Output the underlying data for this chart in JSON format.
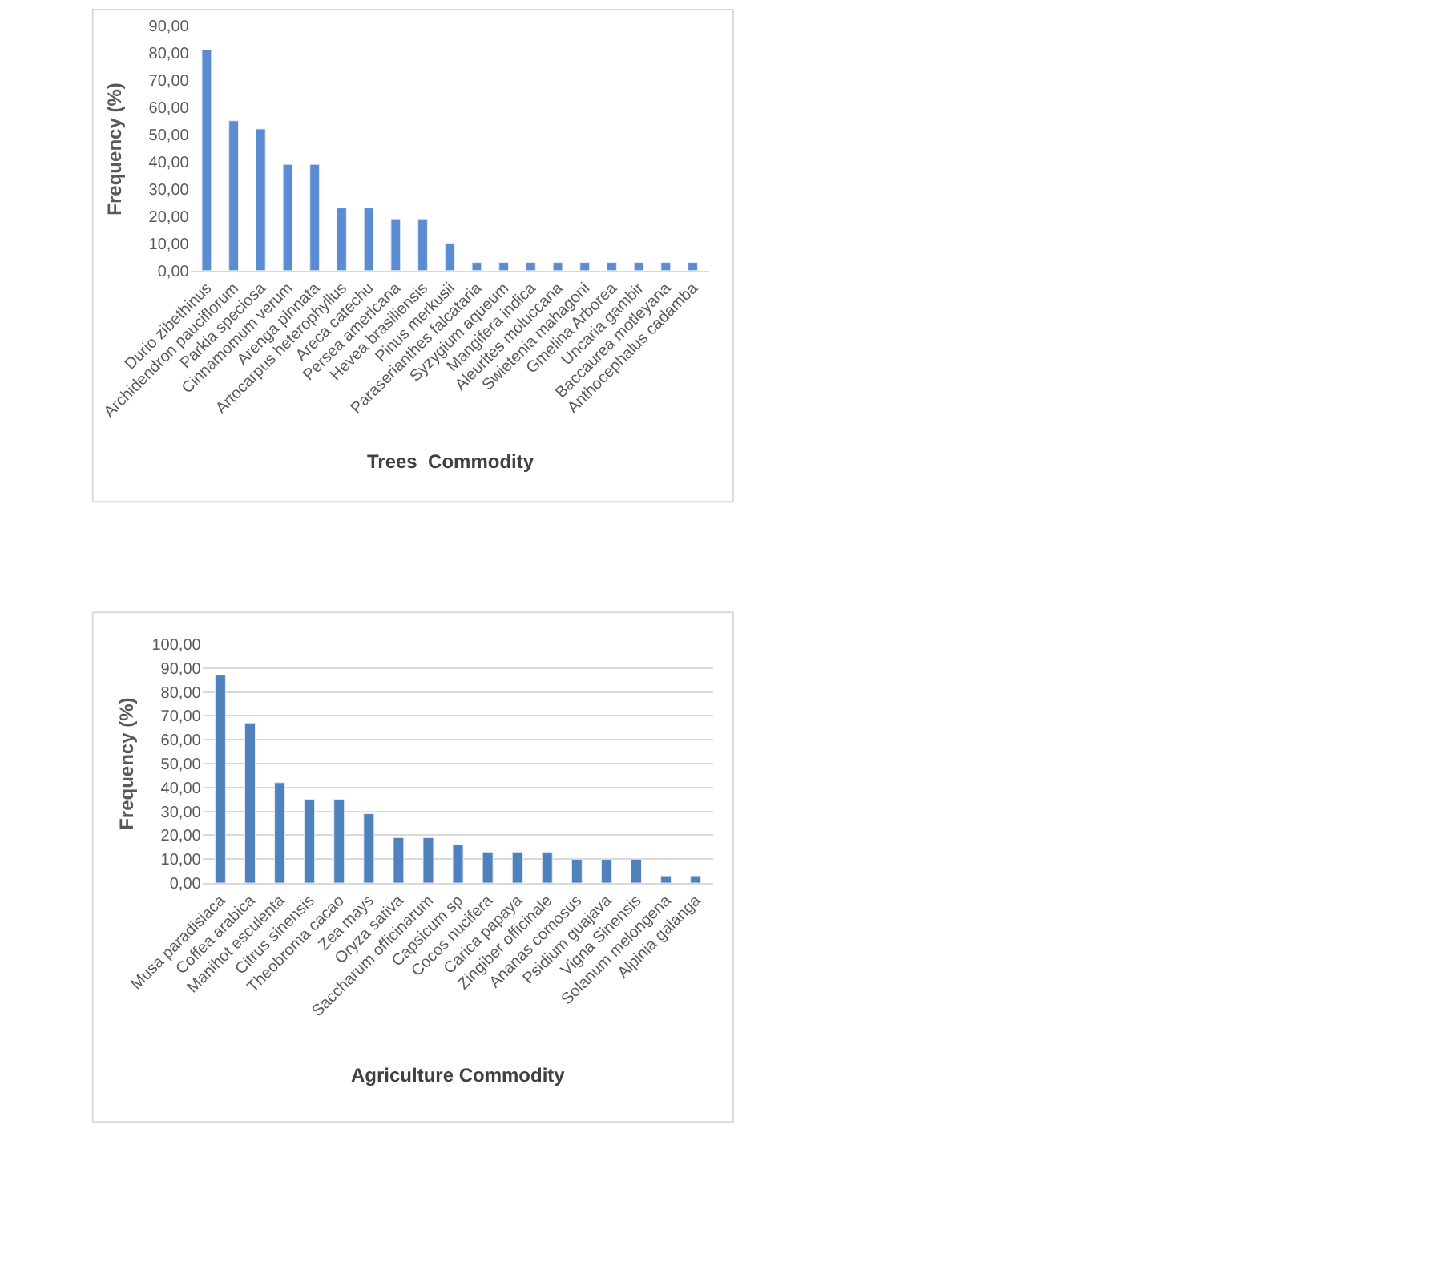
{
  "chart_data": [
    {
      "type": "bar",
      "xlabel": "Trees  Commodity",
      "ylabel": "Frequency (%)",
      "categories": [
        "Durio zibethinus",
        "Archidendron pauciflorum",
        "Parkia speciosa",
        "Cinnamomum verum",
        "Arenga pinnata",
        "Artocarpus heterophyllus",
        "Areca catechu",
        "Persea americana",
        "Hevea brasiliensis",
        "Pinus merkusii",
        "Paraserianthes falcataria",
        "Syzygium aqueum",
        "Mangifera indica",
        "Aleurites moluccana",
        "Swietenia mahagoni",
        "Gmelina Arborea",
        "Uncaria gambir",
        "Baccaurea motleyana",
        "Anthocephalus cadamba"
      ],
      "values": [
        81,
        55,
        52,
        39,
        39,
        23,
        23,
        19,
        19,
        10,
        3,
        3,
        3,
        3,
        3,
        3,
        3,
        3,
        3
      ],
      "color": "#5b8bd0",
      "ylim": [
        0,
        90
      ],
      "yticks": [
        {
          "value": 0,
          "label": "0,00"
        },
        {
          "value": 10,
          "label": "10,00"
        },
        {
          "value": 20,
          "label": "20,00"
        },
        {
          "value": 30,
          "label": "30,00"
        },
        {
          "value": 40,
          "label": "40,00"
        },
        {
          "value": 50,
          "label": "50,00"
        },
        {
          "value": 60,
          "label": "60,00"
        },
        {
          "value": 70,
          "label": "70,00"
        },
        {
          "value": 80,
          "label": "80,00"
        },
        {
          "value": 90,
          "label": "90,00"
        }
      ],
      "grid": false,
      "legend": false
    },
    {
      "type": "bar",
      "xlabel": "Agriculture Commodity",
      "ylabel": "Frequency (%)",
      "categories": [
        "Musa paradisiaca",
        "Coffea arabica",
        "Manihot esculenta",
        "Citrus sinensis",
        "Theobroma cacao",
        "Zea mays",
        "Oryza sativa",
        "Saccharum officinarum",
        "Capsicum sp",
        "Cocos nucifera",
        "Carica papaya",
        "Zingiber officinale",
        "Ananas comosus",
        "Psidium guajava",
        "Vigna Sinensis",
        "Solanum melongena",
        "Alpinia galanga"
      ],
      "values": [
        87,
        67,
        42,
        35,
        35,
        29,
        19,
        19,
        16,
        13,
        13,
        13,
        10,
        10,
        10,
        3,
        3
      ],
      "color": "#4f81bd",
      "ylim": [
        0,
        100
      ],
      "yticks": [
        {
          "value": 0,
          "label": "0,00"
        },
        {
          "value": 10,
          "label": "10,00"
        },
        {
          "value": 20,
          "label": "20,00"
        },
        {
          "value": 30,
          "label": "30,00"
        },
        {
          "value": 40,
          "label": "40,00"
        },
        {
          "value": 50,
          "label": "50,00"
        },
        {
          "value": 60,
          "label": "60,00"
        },
        {
          "value": 70,
          "label": "70,00"
        },
        {
          "value": 80,
          "label": "80,00"
        },
        {
          "value": 90,
          "label": "90,00"
        },
        {
          "value": 100,
          "label": "100,00"
        }
      ],
      "grid": "y",
      "legend": false
    }
  ]
}
